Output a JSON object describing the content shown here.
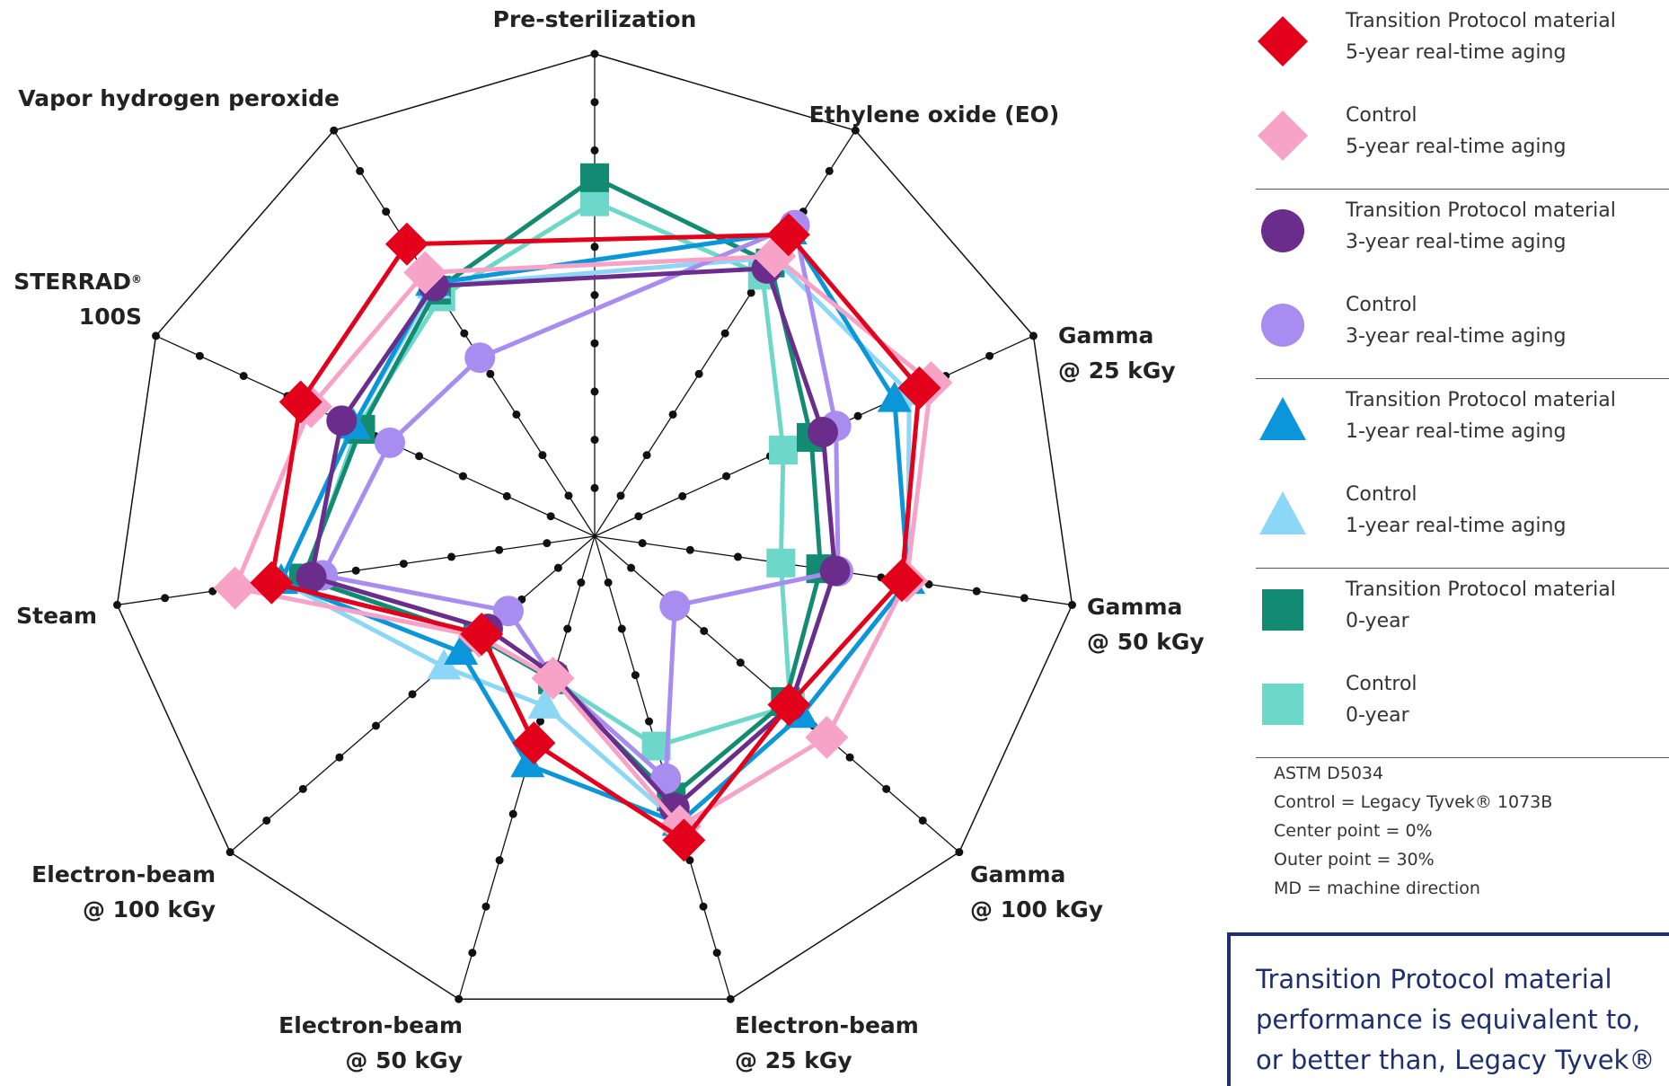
{
  "chart_data": {
    "type": "radar",
    "axes": [
      {
        "label": "Pre-sterilization"
      },
      {
        "label": "Ethylene oxide (EO)"
      },
      {
        "label": "Gamma\n@ 25 kGy"
      },
      {
        "label": "Gamma\n@ 50 kGy"
      },
      {
        "label": "Gamma\n@ 100 kGy"
      },
      {
        "label": "Electron-beam\n@ 25 kGy"
      },
      {
        "label": "Electron-beam\n@ 50 kGy"
      },
      {
        "label": "Electron-beam\n@ 100 kGy"
      },
      {
        "label": "Steam"
      },
      {
        "label": "STERRAD®\n100S"
      },
      {
        "label": "Vapor hydrogen peroxide"
      }
    ],
    "range": [
      0,
      30
    ],
    "unit": "%",
    "tick_step": 3,
    "series": [
      {
        "name": "Transition Protocol material\n5-year real-time aging",
        "marker": "diamond",
        "color": "#e2001a",
        "values": [
          null,
          22.3,
          22.2,
          19.3,
          16.0,
          19.7,
          13.4,
          9.3,
          20.3,
          20.1,
          21.6
        ]
      },
      {
        "name": "Control\n5-year real-time aging",
        "marker": "diamond",
        "color": "#f7a3c8",
        "values": [
          null,
          20.7,
          23.0,
          19.6,
          19.1,
          18.8,
          9.2,
          9.5,
          22.6,
          19.4,
          19.5
        ]
      },
      {
        "name": "Transition Protocol material\n3-year real-time aging",
        "marker": "circle",
        "color": "#6b2d8b",
        "values": [
          null,
          19.8,
          15.6,
          15.1,
          16.1,
          17.6,
          9.0,
          8.8,
          17.8,
          17.3,
          18.5
        ]
      },
      {
        "name": "Control\n3-year real-time aging",
        "marker": "circle",
        "color": "#a98cef",
        "values": [
          null,
          23.0,
          16.5,
          15.3,
          6.6,
          15.7,
          9.2,
          7.1,
          17.1,
          14.0,
          13.2
        ]
      },
      {
        "name": "Transition Protocol material\n1-year real-time aging",
        "marker": "triangle",
        "color": "#0a96d8",
        "values": [
          null,
          22.5,
          20.5,
          19.7,
          17.0,
          18.6,
          14.8,
          11.0,
          19.7,
          16.5,
          18.7
        ]
      },
      {
        "name": "Control\n1-year real-time aging",
        "marker": "triangle",
        "color": "#8cd7f5",
        "values": [
          null,
          20.6,
          21.5,
          19.7,
          17.0,
          18.6,
          11.0,
          12.4,
          19.7,
          16.5,
          18.5
        ]
      },
      {
        "name": "Transition Protocol material\n0-year",
        "marker": "square",
        "color": "#138a72",
        "values": [
          22.3,
          20.2,
          14.8,
          14.2,
          15.7,
          16.9,
          9.3,
          9.6,
          18.3,
          16.0,
          18.2
        ]
      },
      {
        "name": "Control\n0-year",
        "marker": "square",
        "color": "#6dd8c9",
        "values": [
          20.8,
          19.3,
          12.9,
          11.7,
          16.1,
          13.6,
          9.3,
          9.6,
          18.2,
          16.2,
          17.7
        ]
      }
    ],
    "grid": true,
    "legend": "right"
  },
  "notes": [
    "ASTM D5034",
    "Control = Legacy Tyvek® 1073B",
    "Center point = 0%",
    "Outer point = 30%",
    "MD = machine direction"
  ],
  "callout": "Transition Protocol material\nperformance is equivalent to,\nor better than, Legacy Tyvek®"
}
